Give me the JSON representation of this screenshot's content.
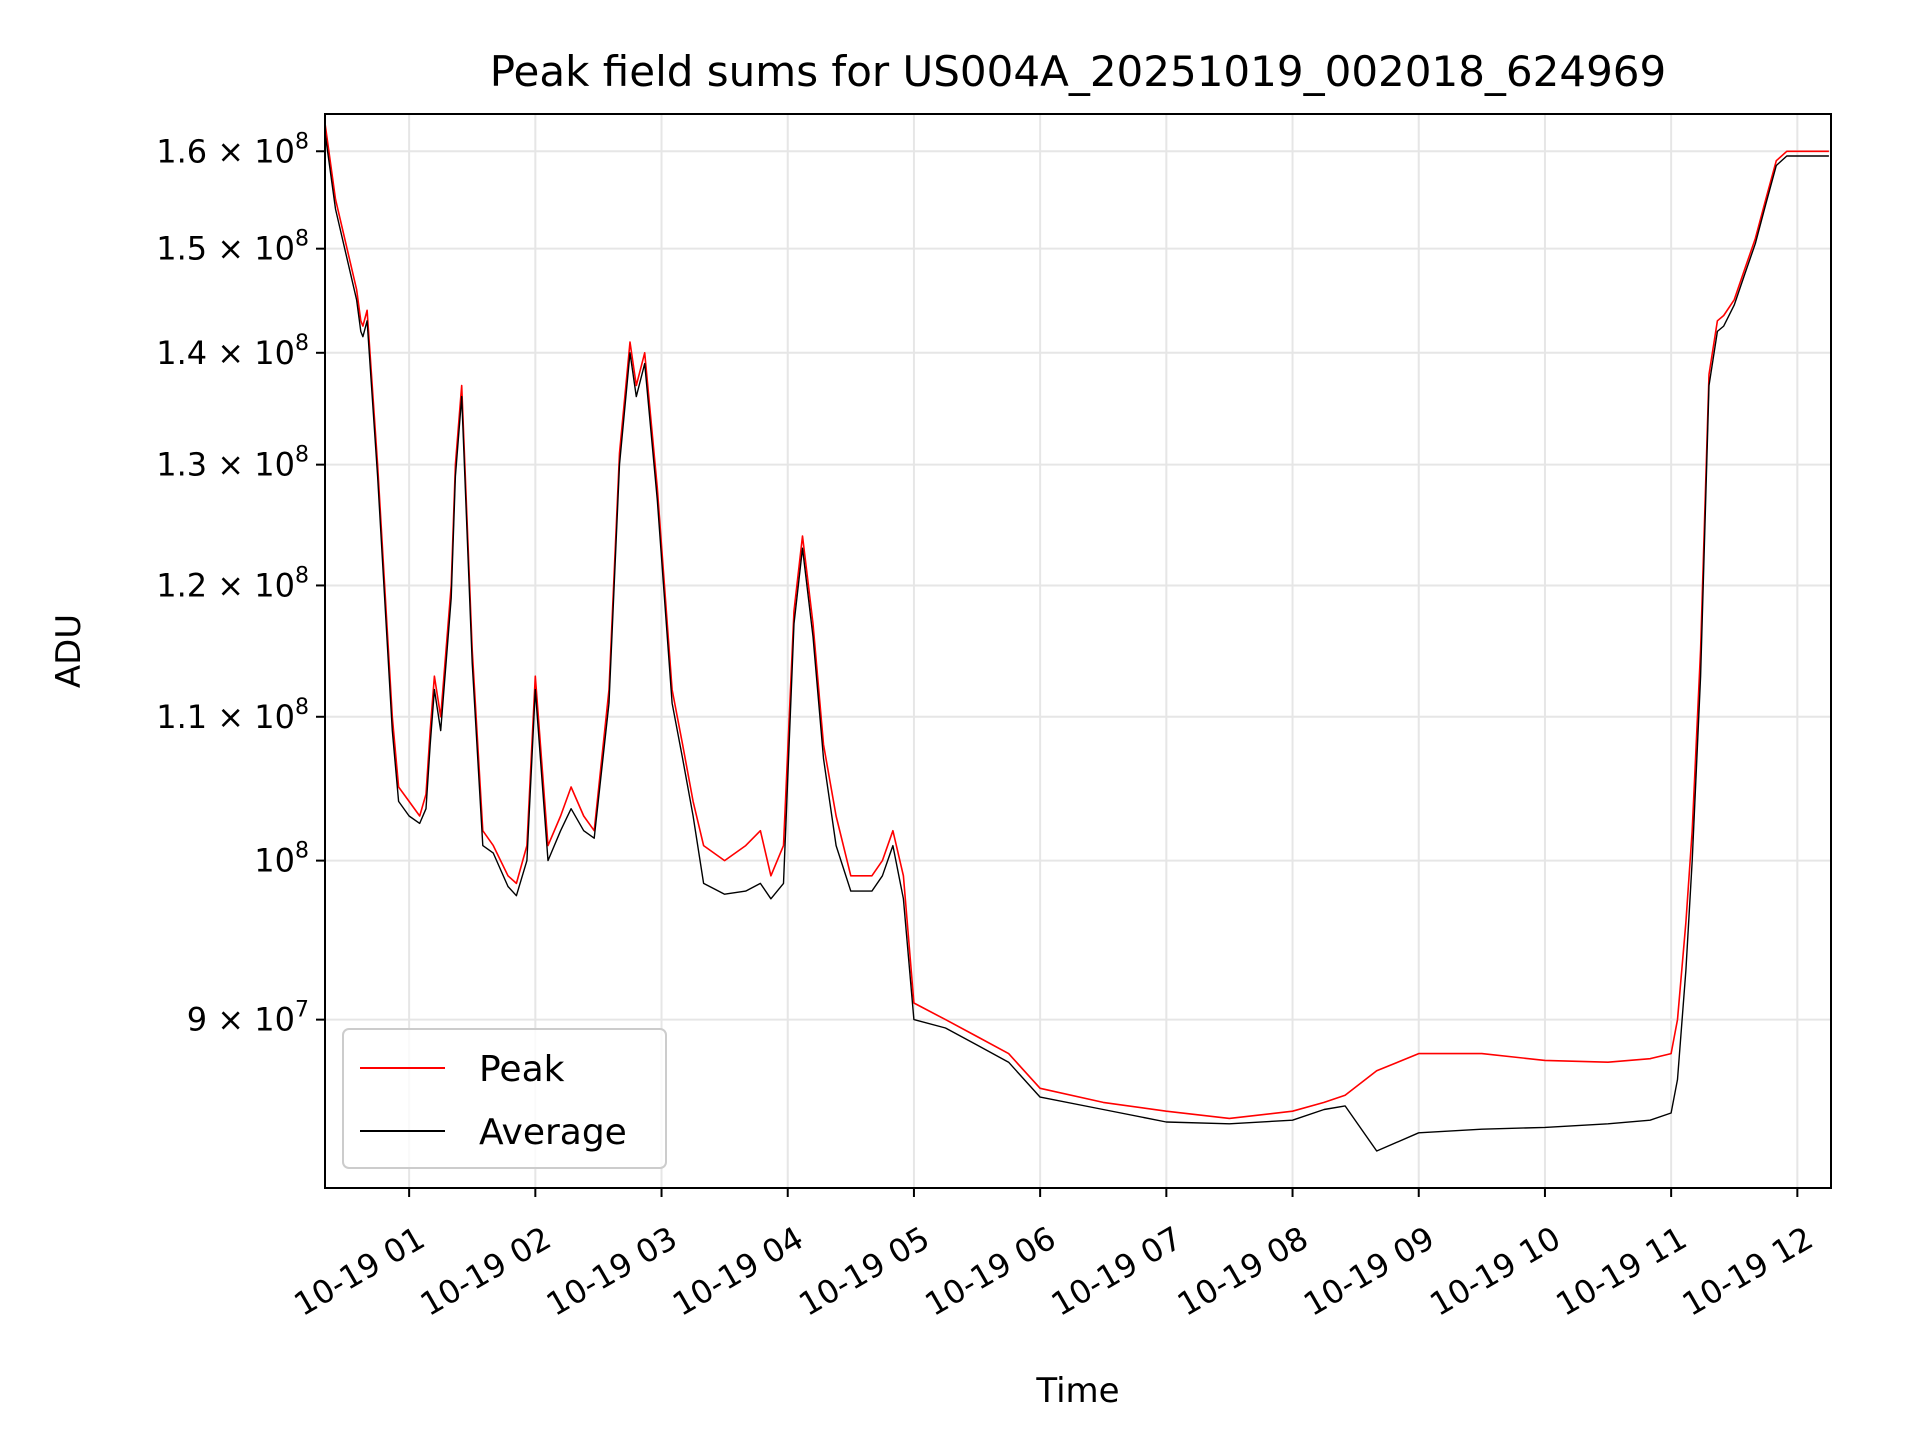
{
  "chart_data": {
    "type": "line",
    "title": "Peak field sums for US004A_20251019_002018_624969",
    "xlabel": "Time",
    "ylabel": "ADU",
    "y_scale": "log",
    "grid": true,
    "legend_placement": "bottom-left",
    "xlim": [
      "2025-10-19 00:20",
      "2025-10-19 12:16"
    ],
    "ylim": [
      80500000,
      164000000
    ],
    "x_ticks": [
      {
        "value": "2025-10-19 01:00",
        "label": "10-19 01"
      },
      {
        "value": "2025-10-19 02:00",
        "label": "10-19 02"
      },
      {
        "value": "2025-10-19 03:00",
        "label": "10-19 03"
      },
      {
        "value": "2025-10-19 04:00",
        "label": "10-19 04"
      },
      {
        "value": "2025-10-19 05:00",
        "label": "10-19 05"
      },
      {
        "value": "2025-10-19 06:00",
        "label": "10-19 06"
      },
      {
        "value": "2025-10-19 07:00",
        "label": "10-19 07"
      },
      {
        "value": "2025-10-19 08:00",
        "label": "10-19 08"
      },
      {
        "value": "2025-10-19 09:00",
        "label": "10-19 09"
      },
      {
        "value": "2025-10-19 10:00",
        "label": "10-19 10"
      },
      {
        "value": "2025-10-19 11:00",
        "label": "10-19 11"
      },
      {
        "value": "2025-10-19 12:00",
        "label": "10-19 12"
      }
    ],
    "y_ticks": [
      {
        "value": 90000000,
        "mantissa": "9",
        "exponent": "7"
      },
      {
        "value": 100000000,
        "mantissa": "",
        "exponent": "8"
      },
      {
        "value": 110000000,
        "mantissa": "1.1",
        "exponent": "8"
      },
      {
        "value": 120000000,
        "mantissa": "1.2",
        "exponent": "8"
      },
      {
        "value": 130000000,
        "mantissa": "1.3",
        "exponent": "8"
      },
      {
        "value": 140000000,
        "mantissa": "1.4",
        "exponent": "8"
      },
      {
        "value": 150000000,
        "mantissa": "1.5",
        "exponent": "8"
      },
      {
        "value": 160000000,
        "mantissa": "1.6",
        "exponent": "8"
      }
    ],
    "series": [
      {
        "name": "Peak",
        "color": "#ff0000",
        "x": [
          "2025-10-19 00:20",
          "2025-10-19 00:25",
          "2025-10-19 00:35",
          "2025-10-19 00:37",
          "2025-10-19 00:38",
          "2025-10-19 00:40",
          "2025-10-19 00:45",
          "2025-10-19 00:52",
          "2025-10-19 00:55",
          "2025-10-19 01:00",
          "2025-10-19 01:05",
          "2025-10-19 01:08",
          "2025-10-19 01:10",
          "2025-10-19 01:12",
          "2025-10-19 01:15",
          "2025-10-19 01:20",
          "2025-10-19 01:22",
          "2025-10-19 01:25",
          "2025-10-19 01:30",
          "2025-10-19 01:35",
          "2025-10-19 01:40",
          "2025-10-19 01:47",
          "2025-10-19 01:51",
          "2025-10-19 01:56",
          "2025-10-19 02:00",
          "2025-10-19 02:06",
          "2025-10-19 02:12",
          "2025-10-19 02:17",
          "2025-10-19 02:23",
          "2025-10-19 02:28",
          "2025-10-19 02:35",
          "2025-10-19 02:40",
          "2025-10-19 02:45",
          "2025-10-19 02:48",
          "2025-10-19 02:52",
          "2025-10-19 02:58",
          "2025-10-19 03:05",
          "2025-10-19 03:10",
          "2025-10-19 03:15",
          "2025-10-19 03:20",
          "2025-10-19 03:30",
          "2025-10-19 03:40",
          "2025-10-19 03:47",
          "2025-10-19 03:52",
          "2025-10-19 03:58",
          "2025-10-19 04:03",
          "2025-10-19 04:07",
          "2025-10-19 04:12",
          "2025-10-19 04:17",
          "2025-10-19 04:23",
          "2025-10-19 04:30",
          "2025-10-19 04:40",
          "2025-10-19 04:45",
          "2025-10-19 04:50",
          "2025-10-19 04:55",
          "2025-10-19 05:00",
          "2025-10-19 05:15",
          "2025-10-19 05:30",
          "2025-10-19 05:45",
          "2025-10-19 06:00",
          "2025-10-19 06:30",
          "2025-10-19 07:00",
          "2025-10-19 07:30",
          "2025-10-19 08:00",
          "2025-10-19 08:15",
          "2025-10-19 08:25",
          "2025-10-19 08:40",
          "2025-10-19 09:00",
          "2025-10-19 09:30",
          "2025-10-19 10:00",
          "2025-10-19 10:30",
          "2025-10-19 10:50",
          "2025-10-19 11:00",
          "2025-10-19 11:03",
          "2025-10-19 11:07",
          "2025-10-19 11:10",
          "2025-10-19 11:14",
          "2025-10-19 11:18",
          "2025-10-19 11:22",
          "2025-10-19 11:25",
          "2025-10-19 11:30",
          "2025-10-19 11:35",
          "2025-10-19 11:40",
          "2025-10-19 11:45",
          "2025-10-19 11:50",
          "2025-10-19 11:55",
          "2025-10-19 12:00",
          "2025-10-19 12:05",
          "2025-10-19 12:10",
          "2025-10-19 12:15"
        ],
        "y": [
          163000000,
          155000000,
          146000000,
          143000000,
          142500000,
          144000000,
          130000000,
          110000000,
          105000000,
          104000000,
          103000000,
          104500000,
          109000000,
          113000000,
          110000000,
          120000000,
          130000000,
          137000000,
          115000000,
          102000000,
          101000000,
          99000000,
          98500000,
          101000000,
          113000000,
          101000000,
          103000000,
          105000000,
          103000000,
          102000000,
          112000000,
          131000000,
          141000000,
          137000000,
          140000000,
          128000000,
          112000000,
          108000000,
          104000000,
          101000000,
          100000000,
          101000000,
          102000000,
          99000000,
          101000000,
          118000000,
          124000000,
          117000000,
          108000000,
          103000000,
          99000000,
          99000000,
          100000000,
          102000000,
          99000000,
          91000000,
          90000000,
          89000000,
          88000000,
          86000000,
          85200000,
          84700000,
          84300000,
          84700000,
          85200000,
          85600000,
          87000000,
          88000000,
          88000000,
          87600000,
          87500000,
          87700000,
          88000000,
          90000000,
          96000000,
          102000000,
          115000000,
          138000000,
          143000000,
          143500000,
          145000000,
          148000000,
          151000000,
          155000000,
          159000000,
          160000000,
          160000000,
          160000000,
          160000000,
          160000000
        ]
      },
      {
        "name": "Average",
        "color": "#000000",
        "x": [
          "2025-10-19 00:20",
          "2025-10-19 00:25",
          "2025-10-19 00:35",
          "2025-10-19 00:37",
          "2025-10-19 00:38",
          "2025-10-19 00:40",
          "2025-10-19 00:45",
          "2025-10-19 00:52",
          "2025-10-19 00:55",
          "2025-10-19 01:00",
          "2025-10-19 01:05",
          "2025-10-19 01:08",
          "2025-10-19 01:10",
          "2025-10-19 01:12",
          "2025-10-19 01:15",
          "2025-10-19 01:20",
          "2025-10-19 01:22",
          "2025-10-19 01:25",
          "2025-10-19 01:30",
          "2025-10-19 01:35",
          "2025-10-19 01:40",
          "2025-10-19 01:47",
          "2025-10-19 01:51",
          "2025-10-19 01:56",
          "2025-10-19 02:00",
          "2025-10-19 02:06",
          "2025-10-19 02:12",
          "2025-10-19 02:17",
          "2025-10-19 02:23",
          "2025-10-19 02:28",
          "2025-10-19 02:35",
          "2025-10-19 02:40",
          "2025-10-19 02:45",
          "2025-10-19 02:48",
          "2025-10-19 02:52",
          "2025-10-19 02:58",
          "2025-10-19 03:05",
          "2025-10-19 03:10",
          "2025-10-19 03:15",
          "2025-10-19 03:20",
          "2025-10-19 03:30",
          "2025-10-19 03:40",
          "2025-10-19 03:47",
          "2025-10-19 03:52",
          "2025-10-19 03:58",
          "2025-10-19 04:03",
          "2025-10-19 04:07",
          "2025-10-19 04:12",
          "2025-10-19 04:17",
          "2025-10-19 04:23",
          "2025-10-19 04:30",
          "2025-10-19 04:40",
          "2025-10-19 04:45",
          "2025-10-19 04:50",
          "2025-10-19 04:55",
          "2025-10-19 05:00",
          "2025-10-19 05:15",
          "2025-10-19 05:30",
          "2025-10-19 05:45",
          "2025-10-19 06:00",
          "2025-10-19 06:30",
          "2025-10-19 07:00",
          "2025-10-19 07:30",
          "2025-10-19 08:00",
          "2025-10-19 08:15",
          "2025-10-19 08:25",
          "2025-10-19 08:40",
          "2025-10-19 09:00",
          "2025-10-19 09:30",
          "2025-10-19 10:00",
          "2025-10-19 10:30",
          "2025-10-19 10:50",
          "2025-10-19 11:00",
          "2025-10-19 11:03",
          "2025-10-19 11:07",
          "2025-10-19 11:10",
          "2025-10-19 11:14",
          "2025-10-19 11:18",
          "2025-10-19 11:22",
          "2025-10-19 11:25",
          "2025-10-19 11:30",
          "2025-10-19 11:35",
          "2025-10-19 11:40",
          "2025-10-19 11:45",
          "2025-10-19 11:50",
          "2025-10-19 11:55",
          "2025-10-19 12:00",
          "2025-10-19 12:05",
          "2025-10-19 12:10",
          "2025-10-19 12:15"
        ],
        "y": [
          162000000,
          154000000,
          145000000,
          142000000,
          141500000,
          143000000,
          129000000,
          109000000,
          104000000,
          103000000,
          102500000,
          103500000,
          108000000,
          112000000,
          109000000,
          119000000,
          129000000,
          136000000,
          114000000,
          101000000,
          100500000,
          98300000,
          97700000,
          100000000,
          112000000,
          100000000,
          102000000,
          103500000,
          102000000,
          101500000,
          111000000,
          130000000,
          140000000,
          136000000,
          139000000,
          127000000,
          111000000,
          107000000,
          103000000,
          98500000,
          97800000,
          98000000,
          98500000,
          97500000,
          98500000,
          117000000,
          123000000,
          116000000,
          107000000,
          101000000,
          98000000,
          98000000,
          99000000,
          101000000,
          97500000,
          90000000,
          89500000,
          88500000,
          87500000,
          85500000,
          84800000,
          84100000,
          84000000,
          84200000,
          84800000,
          85000000,
          82500000,
          83500000,
          83700000,
          83800000,
          84000000,
          84200000,
          84600000,
          86500000,
          93000000,
          100000000,
          113000000,
          137000000,
          142000000,
          142500000,
          144500000,
          147500000,
          150500000,
          154500000,
          158500000,
          159500000,
          159500000,
          159500000,
          159500000,
          159500000
        ]
      }
    ]
  }
}
